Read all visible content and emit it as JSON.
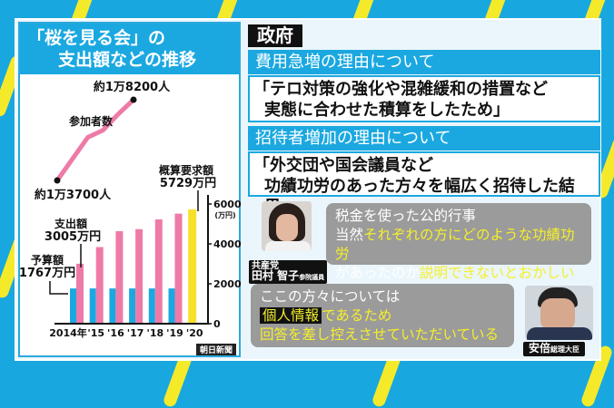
{
  "colors": {
    "background": "#19a7df",
    "stripe": "#f5ea2a",
    "budget": "#1ba8e0",
    "expenditure": "#ee7aa8",
    "request": "#f7e02a",
    "highlight": "#f5ef2a"
  },
  "chart_title": [
    "「桜を見る会」の",
    "支出額などの推移"
  ],
  "chart_data": {
    "type": "bar",
    "title": "「桜を見る会」の支出額などの推移",
    "categories": [
      "2014年",
      "'15",
      "'16",
      "'17",
      "'18",
      "'19",
      "'20"
    ],
    "y_unit": "(万円)",
    "yticks": [
      "0",
      "2000",
      "4000",
      "6000"
    ],
    "ylim": [
      0,
      6500
    ],
    "series": [
      {
        "name": "予算額",
        "color": "#1ba8e0",
        "values": [
          1767,
          1767,
          1767,
          1767,
          1767,
          1767,
          null
        ]
      },
      {
        "name": "支出額",
        "color": "#ee7aa8",
        "values": [
          3005,
          3841,
          4639,
          4739,
          5229,
          5518,
          null
        ]
      },
      {
        "name": "概算要求額",
        "color": "#f7e02a",
        "values": [
          null,
          null,
          null,
          null,
          null,
          null,
          5729
        ]
      }
    ],
    "line_series": {
      "name": "参加者数",
      "values": [
        13700,
        14900,
        16100,
        16500,
        17400,
        18200
      ]
    },
    "annotations": {
      "budget_label": "予算額",
      "budget_value": "1767万円",
      "spend_label": "支出額",
      "spend_value": "3005万円",
      "request_label": "概算要求額",
      "request_value": "5729万円",
      "participants_start": "約1万3700人",
      "participants_end": "約1万8200人"
    },
    "source": "朝日新聞"
  },
  "government": {
    "label": "政府",
    "sections": [
      {
        "heading": "費用急増の理由について",
        "quote": [
          "「テロ対策の強化や混雑緩和の措置など",
          "実態に合わせた積算をしたため」"
        ]
      },
      {
        "heading": "招待者増加の理由について",
        "quote": [
          "「外交団や国会議員など",
          "功績功労のあった方々を幅広く招待した結果」"
        ]
      }
    ]
  },
  "tamura": {
    "party": "共産党",
    "name": "田村 智子",
    "title": "参院議員",
    "lines": {
      "l1": "税金を使った公的行事",
      "l2a": "当然",
      "l2b": "それぞれの方にどのような功績功労",
      "l3a": "があったのか",
      "l3b": "説明できないとおかしい"
    }
  },
  "abe": {
    "name": "安倍",
    "title": "総理大臣",
    "lines": {
      "l1": "ここの方々については",
      "l2a": "個人情報",
      "l2b": "であるため",
      "l3": "回答を差し控えさせていただいている"
    }
  }
}
